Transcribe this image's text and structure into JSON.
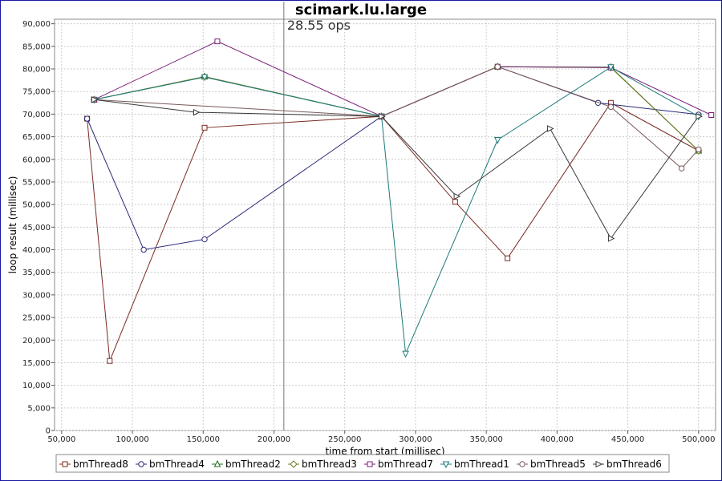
{
  "chart_data": {
    "type": "line",
    "title": "scimark.lu.large",
    "xlabel": "time from start (millisec)",
    "ylabel": "loop result (millisec)",
    "xlim": [
      45000,
      512000
    ],
    "ylim": [
      0,
      91000
    ],
    "x_ticks": [
      "50,000",
      "100,000",
      "150,000",
      "200,000",
      "250,000",
      "300,000",
      "350,000",
      "400,000",
      "450,000",
      "500,000"
    ],
    "x_tick_values": [
      50000,
      100000,
      150000,
      200000,
      250000,
      300000,
      350000,
      400000,
      450000,
      500000
    ],
    "y_ticks": [
      "0",
      "5,000",
      "10,000",
      "15,000",
      "20,000",
      "25,000",
      "30,000",
      "35,000",
      "40,000",
      "45,000",
      "50,000",
      "55,000",
      "60,000",
      "65,000",
      "70,000",
      "75,000",
      "80,000",
      "85,000",
      "90,000"
    ],
    "y_tick_values": [
      0,
      5000,
      10000,
      15000,
      20000,
      25000,
      30000,
      35000,
      40000,
      45000,
      50000,
      55000,
      60000,
      65000,
      70000,
      75000,
      80000,
      85000,
      90000
    ],
    "grid": true,
    "legend_position": "bottom",
    "marker_line": {
      "x": 207000,
      "label": "28.55 ops"
    },
    "series": [
      {
        "name": "bmThread8",
        "color": "#7a2a22",
        "marker": "square",
        "points": [
          [
            68000,
            69000
          ],
          [
            84000,
            15400
          ],
          [
            151000,
            67000
          ],
          [
            276000,
            69500
          ],
          [
            328000,
            50600
          ],
          [
            365000,
            38100
          ],
          [
            438000,
            72500
          ],
          [
            500000,
            61900
          ]
        ]
      },
      {
        "name": "bmThread4",
        "color": "#2a2a7a",
        "marker": "circle",
        "points": [
          [
            68000,
            69000
          ],
          [
            108000,
            40000
          ],
          [
            151000,
            42300
          ],
          [
            276000,
            69500
          ],
          [
            358000,
            80500
          ],
          [
            429000,
            72500
          ],
          [
            500000,
            69900
          ]
        ]
      },
      {
        "name": "bmThread2",
        "color": "#1e6e1e",
        "marker": "triangle-up",
        "points": [
          [
            73000,
            73200
          ],
          [
            151000,
            78300
          ],
          [
            276000,
            69500
          ],
          [
            358000,
            80500
          ],
          [
            438000,
            80400
          ],
          [
            500000,
            61900
          ]
        ]
      },
      {
        "name": "bmThread3",
        "color": "#6e7a1e",
        "marker": "diamond",
        "points": [
          [
            73000,
            73200
          ],
          [
            151000,
            78300
          ],
          [
            276000,
            69500
          ],
          [
            358000,
            80500
          ],
          [
            438000,
            80300
          ],
          [
            500000,
            61900
          ]
        ]
      },
      {
        "name": "bmThread7",
        "color": "#7a1e7a",
        "marker": "square",
        "points": [
          [
            73000,
            73200
          ],
          [
            160000,
            86100
          ],
          [
            276000,
            69500
          ],
          [
            358000,
            80500
          ],
          [
            438000,
            80300
          ],
          [
            509000,
            69800
          ]
        ]
      },
      {
        "name": "bmThread1",
        "color": "#1e7a7a",
        "marker": "triangle-down",
        "points": [
          [
            73000,
            73200
          ],
          [
            151000,
            78200
          ],
          [
            276000,
            69500
          ],
          [
            293000,
            17000
          ],
          [
            358000,
            64300
          ],
          [
            438000,
            80400
          ],
          [
            500000,
            69500
          ]
        ]
      },
      {
        "name": "bmThread5",
        "color": "#7a5a5a",
        "marker": "circle",
        "points": [
          [
            73000,
            73200
          ],
          [
            276000,
            69500
          ],
          [
            358000,
            80500
          ],
          [
            438000,
            71600
          ],
          [
            488000,
            58000
          ],
          [
            500000,
            62200
          ]
        ]
      },
      {
        "name": "bmThread6",
        "color": "#3a3a3a",
        "marker": "triangle-right",
        "points": [
          [
            73000,
            73200
          ],
          [
            145000,
            70400
          ],
          [
            276000,
            69500
          ],
          [
            329000,
            51800
          ],
          [
            395000,
            66800
          ],
          [
            438000,
            42500
          ],
          [
            500000,
            69500
          ]
        ]
      }
    ]
  }
}
